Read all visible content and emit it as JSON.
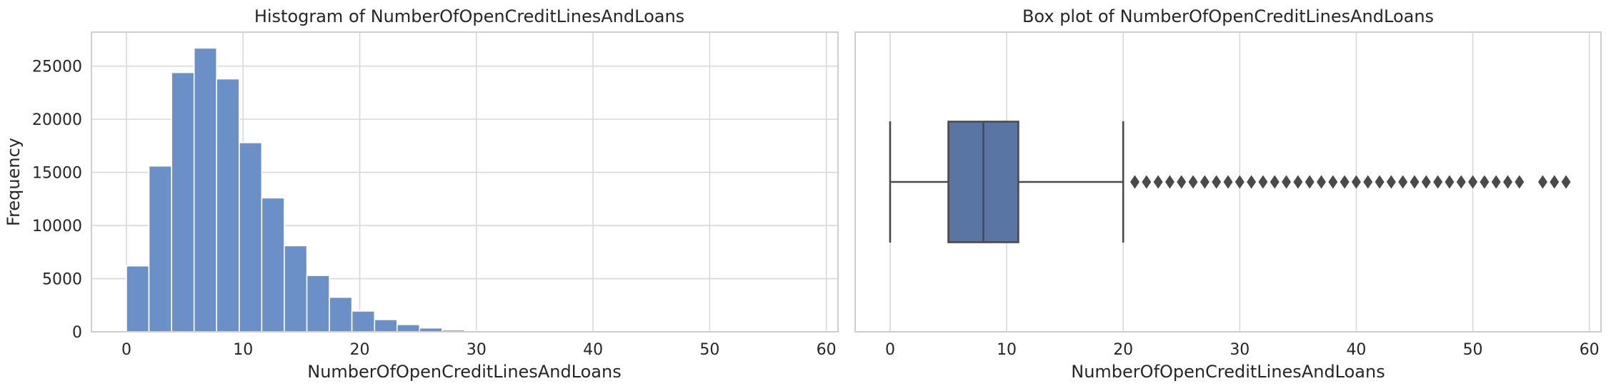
{
  "chart_data": [
    {
      "type": "bar",
      "subtype": "histogram",
      "title": "Histogram of NumberOfOpenCreditLinesAndLoans",
      "xlabel": "NumberOfOpenCreditLinesAndLoans",
      "ylabel": "Frequency",
      "xlim": [
        -3,
        61
      ],
      "ylim": [
        0,
        28200
      ],
      "xticks": [
        0,
        10,
        20,
        30,
        40,
        50,
        60
      ],
      "yticks": [
        0,
        5000,
        10000,
        15000,
        20000,
        25000
      ],
      "grid": true,
      "bar_color": "#6b8fc7",
      "bins": [
        {
          "x0": 0.0,
          "x1": 1.93,
          "count": 6200
        },
        {
          "x0": 1.93,
          "x1": 3.87,
          "count": 15600
        },
        {
          "x0": 3.87,
          "x1": 5.8,
          "count": 24400
        },
        {
          "x0": 5.8,
          "x1": 7.73,
          "count": 26700
        },
        {
          "x0": 7.73,
          "x1": 9.67,
          "count": 23800
        },
        {
          "x0": 9.67,
          "x1": 11.6,
          "count": 17800
        },
        {
          "x0": 11.6,
          "x1": 13.53,
          "count": 12600
        },
        {
          "x0": 13.53,
          "x1": 15.47,
          "count": 8100
        },
        {
          "x0": 15.47,
          "x1": 17.4,
          "count": 5300
        },
        {
          "x0": 17.4,
          "x1": 19.33,
          "count": 3250
        },
        {
          "x0": 19.33,
          "x1": 21.27,
          "count": 1950
        },
        {
          "x0": 21.27,
          "x1": 23.2,
          "count": 1150
        },
        {
          "x0": 23.2,
          "x1": 25.13,
          "count": 680
        },
        {
          "x0": 25.13,
          "x1": 27.07,
          "count": 360
        },
        {
          "x0": 27.07,
          "x1": 29.0,
          "count": 170
        },
        {
          "x0": 29.0,
          "x1": 30.93,
          "count": 110
        },
        {
          "x0": 30.93,
          "x1": 32.87,
          "count": 60
        },
        {
          "x0": 32.87,
          "x1": 34.8,
          "count": 30
        },
        {
          "x0": 34.8,
          "x1": 36.73,
          "count": 15
        },
        {
          "x0": 36.73,
          "x1": 38.67,
          "count": 8
        },
        {
          "x0": 38.67,
          "x1": 40.6,
          "count": 5
        },
        {
          "x0": 40.6,
          "x1": 42.53,
          "count": 3
        },
        {
          "x0": 42.53,
          "x1": 44.47,
          "count": 2
        },
        {
          "x0": 44.47,
          "x1": 46.4,
          "count": 2
        },
        {
          "x0": 46.4,
          "x1": 48.33,
          "count": 1
        },
        {
          "x0": 48.33,
          "x1": 50.27,
          "count": 1
        },
        {
          "x0": 50.27,
          "x1": 52.2,
          "count": 1
        },
        {
          "x0": 52.2,
          "x1": 54.13,
          "count": 1
        },
        {
          "x0": 54.13,
          "x1": 56.07,
          "count": 1
        },
        {
          "x0": 56.07,
          "x1": 58.0,
          "count": 1
        }
      ]
    },
    {
      "type": "box",
      "title": "Box plot of NumberOfOpenCreditLinesAndLoans",
      "xlabel": "NumberOfOpenCreditLinesAndLoans",
      "xlim": [
        -3,
        61
      ],
      "xticks": [
        0,
        10,
        20,
        30,
        40,
        50,
        60
      ],
      "grid": true,
      "box_color": "#5875a4",
      "line_color": "#4a4a4a",
      "whisker_low": 0,
      "q1": 5,
      "median": 8,
      "q3": 11,
      "whisker_high": 20,
      "outliers": [
        21,
        22,
        23,
        24,
        25,
        26,
        27,
        28,
        29,
        30,
        31,
        32,
        33,
        34,
        35,
        36,
        37,
        38,
        39,
        40,
        41,
        42,
        43,
        44,
        45,
        46,
        47,
        48,
        49,
        50,
        51,
        52,
        53,
        54,
        56,
        57,
        58
      ]
    }
  ]
}
